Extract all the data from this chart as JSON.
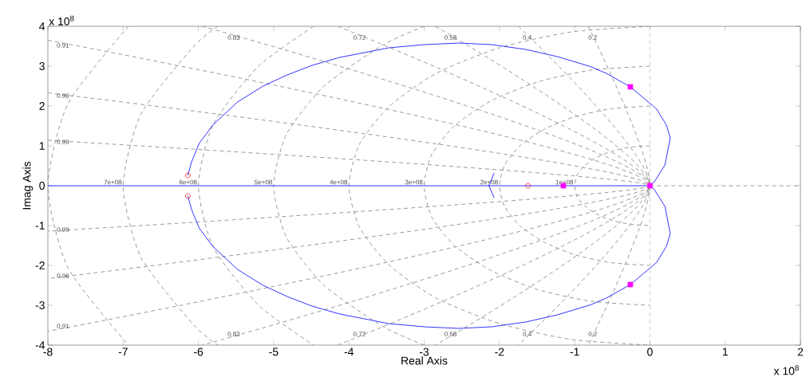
{
  "chart_data": {
    "type": "line",
    "xlabel": "Real Axis",
    "ylabel": "Imag Axis",
    "xlim": [
      -8,
      2
    ],
    "ylim": [
      -4,
      4
    ],
    "xticks": [
      -8,
      -7,
      -6,
      -5,
      -4,
      -3,
      -2,
      -1,
      0,
      1,
      2
    ],
    "yticks": [
      -4,
      -3,
      -2,
      -1,
      0,
      1,
      2,
      3,
      4
    ],
    "series": [
      {
        "color": "#808080",
        "line_style": "dashed",
        "marker": "none",
        "x": [
          0,
          2
        ],
        "values": [
          0,
          0
        ]
      },
      {
        "color": "#808080",
        "line_style": "dashed",
        "marker": "none",
        "x": [
          -0.82,
          0,
          -0.82
        ],
        "values": [
          4,
          0,
          -4
        ]
      },
      {
        "color": "#808080",
        "line_style": "dashed",
        "marker": "none",
        "x": [
          -1.75,
          0,
          -1.75
        ],
        "values": [
          4,
          0,
          -4
        ]
      },
      {
        "color": "#808080",
        "line_style": "dashed",
        "marker": "none",
        "x": [
          -2.85,
          0,
          -2.85
        ],
        "values": [
          4,
          0,
          -4
        ]
      },
      {
        "color": "#808080",
        "line_style": "dashed",
        "marker": "none",
        "x": [
          -4.15,
          0,
          -4.15
        ],
        "values": [
          4,
          0,
          -4
        ]
      },
      {
        "color": "#808080",
        "line_style": "dashed",
        "marker": "none",
        "x": [
          -5.95,
          0,
          -5.95
        ],
        "values": [
          4,
          0,
          -4
        ]
      },
      {
        "color": "#808080",
        "line_style": "dashed",
        "marker": "none",
        "x": [
          -8,
          0,
          -8
        ],
        "values": [
          3.65,
          0,
          -3.65
        ]
      },
      {
        "color": "#808080",
        "line_style": "dashed",
        "marker": "none",
        "x": [
          -8,
          0,
          -8
        ],
        "values": [
          2.33,
          0,
          -2.33
        ]
      },
      {
        "color": "#808080",
        "line_style": "dashed",
        "marker": "none",
        "x": [
          -8,
          0,
          -8
        ],
        "values": [
          1.14,
          0,
          -1.14
        ]
      },
      {
        "color": "#808080",
        "line_style": "dashed",
        "marker": "none",
        "x": [
          0,
          -0.26,
          -0.5,
          -0.71,
          -0.87,
          -0.97,
          -1,
          -0.97,
          -0.87,
          -0.71,
          -0.5,
          -0.26,
          0
        ],
        "values": [
          1,
          0.97,
          0.87,
          0.71,
          0.5,
          0.26,
          0,
          -0.26,
          -0.5,
          -0.71,
          -0.87,
          -0.97,
          -1
        ]
      },
      {
        "color": "#808080",
        "line_style": "dashed",
        "marker": "none",
        "x": [
          0,
          -0.52,
          -1,
          -1.41,
          -1.73,
          -1.93,
          -2,
          -1.93,
          -1.73,
          -1.41,
          -1,
          -0.52,
          0
        ],
        "values": [
          2,
          1.93,
          1.73,
          1.41,
          1,
          0.52,
          0,
          -0.52,
          -1,
          -1.41,
          -1.73,
          -1.93,
          -2
        ]
      },
      {
        "color": "#808080",
        "line_style": "dashed",
        "marker": "none",
        "x": [
          0,
          -0.78,
          -1.5,
          -2.12,
          -2.6,
          -2.9,
          -3,
          -2.9,
          -2.6,
          -2.12,
          -1.5,
          -0.78,
          0
        ],
        "values": [
          3,
          2.9,
          2.6,
          2.12,
          1.5,
          0.78,
          0,
          -0.78,
          -1.5,
          -2.12,
          -2.6,
          -2.9,
          -3
        ]
      },
      {
        "color": "#808080",
        "line_style": "dashed",
        "marker": "none",
        "x": [
          0,
          -1.04,
          -2,
          -2.83,
          -3.46,
          -3.86,
          -4,
          -3.86,
          -3.46,
          -2.83,
          -2,
          -1.04,
          0
        ],
        "values": [
          4,
          3.86,
          3.46,
          2.83,
          2,
          1.04,
          0,
          -1.04,
          -2,
          -2.83,
          -3.46,
          -3.86,
          -4
        ]
      },
      {
        "color": "#808080",
        "line_style": "dashed",
        "marker": "none",
        "x": [
          -3,
          -3.54,
          -4.33,
          -4.83,
          -5,
          -4.83,
          -4.33,
          -3.54,
          -3
        ],
        "values": [
          4,
          3.54,
          2.5,
          1.29,
          0,
          -1.29,
          -2.5,
          -3.54,
          -4
        ]
      },
      {
        "color": "#808080",
        "line_style": "dashed",
        "marker": "none",
        "x": [
          -4.47,
          -5.2,
          -5.8,
          -6,
          -5.8,
          -5.2,
          -4.47
        ],
        "values": [
          4,
          3,
          1.55,
          0,
          -1.55,
          -3,
          -4
        ]
      },
      {
        "color": "#808080",
        "line_style": "dashed",
        "marker": "none",
        "x": [
          -5.74,
          -6.06,
          -6.76,
          -7,
          -6.76,
          -6.06,
          -5.74
        ],
        "values": [
          4,
          3.5,
          1.81,
          0,
          -1.81,
          -3.5,
          -4
        ]
      },
      {
        "color": "#808080",
        "line_style": "dashed",
        "marker": "none",
        "x": [
          -6.93,
          -7.73,
          -8,
          -7.73,
          -6.93
        ],
        "values": [
          4,
          2.07,
          0,
          -2.07,
          -4
        ]
      },
      {
        "color": "#0000ff",
        "line_style": "solid",
        "marker": "none",
        "x": [
          -8,
          -1.62,
          -1.15,
          0
        ],
        "values": [
          0,
          0,
          0,
          0
        ]
      },
      {
        "color": "#0000ff",
        "line_style": "solid",
        "marker": "none",
        "x": [
          -2.07,
          -2.14,
          -2.07
        ],
        "values": [
          0.32,
          0,
          -0.3
        ]
      },
      {
        "color": "#0000ff",
        "line_style": "solid",
        "marker": "none",
        "x": [
          0,
          0.06,
          0.2,
          0.27,
          0.22,
          0.09,
          0.03,
          -0.26,
          -0.58,
          -0.79,
          -1.23,
          -1.65,
          -2.1,
          -2.54,
          -3.0,
          -3.47,
          -4.12,
          -4.49,
          -4.82,
          -5.14,
          -5.48,
          -5.81,
          -5.99,
          -6.09,
          -6.14
        ],
        "values": [
          0,
          0.1,
          0.52,
          1.2,
          1.52,
          1.92,
          2.02,
          2.48,
          2.82,
          2.99,
          3.24,
          3.42,
          3.54,
          3.58,
          3.54,
          3.46,
          3.22,
          3.02,
          2.78,
          2.5,
          2.1,
          1.52,
          1.06,
          0.6,
          0.26
        ]
      },
      {
        "color": "#0000ff",
        "line_style": "solid",
        "marker": "none",
        "x": [
          0,
          0.06,
          0.2,
          0.27,
          0.22,
          0.09,
          0.03,
          -0.26,
          -0.58,
          -0.79,
          -1.23,
          -1.65,
          -2.1,
          -2.54,
          -3.0,
          -3.47,
          -4.12,
          -4.49,
          -4.82,
          -5.14,
          -5.48,
          -5.81,
          -5.99,
          -6.09,
          -6.14
        ],
        "values": [
          0,
          -0.1,
          -0.52,
          -1.2,
          -1.52,
          -1.92,
          -2.02,
          -2.48,
          -2.82,
          -2.99,
          -3.24,
          -3.42,
          -3.54,
          -3.58,
          -3.54,
          -3.46,
          -3.22,
          -3.02,
          -2.78,
          -2.5,
          -2.1,
          -1.52,
          -1.06,
          -0.6,
          -0.26
        ]
      },
      {
        "type": "scatter",
        "color": "#ff00ff",
        "marker": "square",
        "x": [
          -0.26,
          -0.26,
          -1.15,
          0
        ],
        "values": [
          2.48,
          -2.48,
          0,
          0
        ]
      },
      {
        "type": "scatter",
        "color": "#ff0000",
        "marker": "circle",
        "x": [
          -6.14,
          -6.14,
          -1.62
        ],
        "values": [
          0.26,
          -0.26,
          0
        ]
      }
    ],
    "ref_lines": [
      {
        "axis": "x",
        "value": 0,
        "color": "#808080",
        "line_style": "dashed"
      }
    ],
    "annotations": [
      "x 10$^{8}$",
      "x 10$^{8}$",
      {
        "text": "0.2",
        "x": -0.76,
        "y": 3.72
      },
      {
        "text": "0.4",
        "x": -1.63,
        "y": 3.72
      },
      {
        "text": "0.58",
        "x": -2.65,
        "y": 3.72
      },
      {
        "text": "0.72",
        "x": -3.86,
        "y": 3.72
      },
      {
        "text": "0.83",
        "x": -5.53,
        "y": 3.72
      },
      {
        "text": "0.91",
        "x": -7.9,
        "y": 3.52
      },
      {
        "text": "0.96",
        "x": -7.9,
        "y": 2.26
      },
      {
        "text": "0.99",
        "x": -7.9,
        "y": 1.1
      },
      {
        "text": "0.99",
        "x": -7.9,
        "y": -1.1
      },
      {
        "text": "0.96",
        "x": -7.9,
        "y": -2.26
      },
      {
        "text": "0.91",
        "x": -7.9,
        "y": -3.52
      },
      {
        "text": "0.83",
        "x": -5.53,
        "y": -3.72
      },
      {
        "text": "0.72",
        "x": -3.86,
        "y": -3.72
      },
      {
        "text": "0.58",
        "x": -2.65,
        "y": -3.72
      },
      {
        "text": "0.4",
        "x": -1.63,
        "y": -3.72
      },
      {
        "text": "0.2",
        "x": -0.76,
        "y": -3.72
      },
      {
        "text": "7e+08",
        "x": -7,
        "y": 0
      },
      {
        "text": "6e+08",
        "x": -6,
        "y": 0
      },
      {
        "text": "5e+08",
        "x": -5,
        "y": 0
      },
      {
        "text": "4e+08",
        "x": -4,
        "y": 0
      },
      {
        "text": "3e+08",
        "x": -3,
        "y": 0
      },
      {
        "text": "2e+08",
        "x": -2,
        "y": 0
      },
      {
        "text": "1e+08",
        "x": -1,
        "y": 0
      }
    ]
  }
}
